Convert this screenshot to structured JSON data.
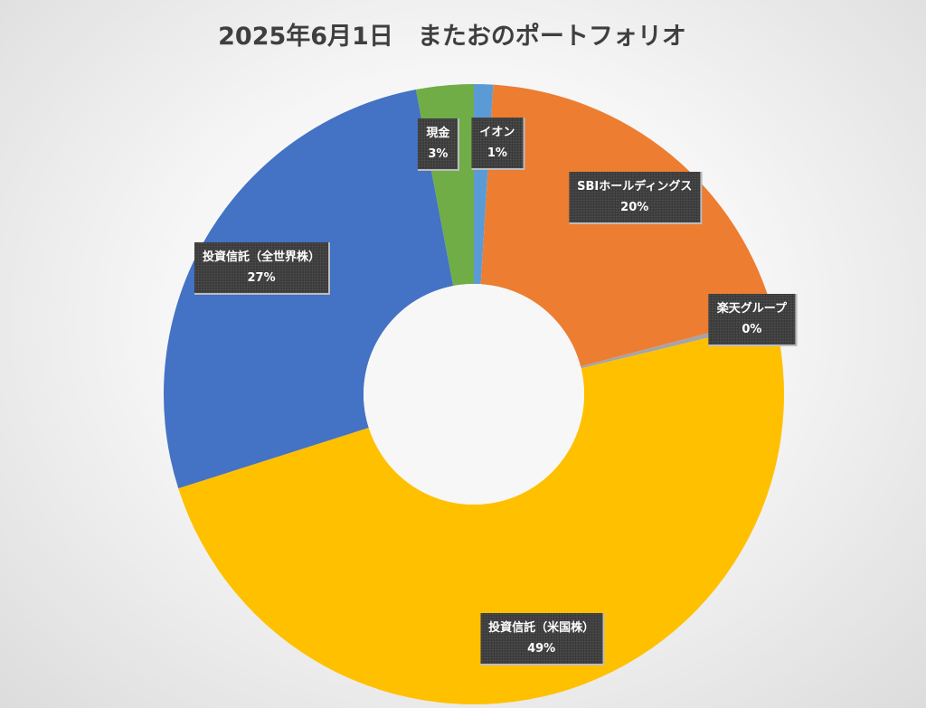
{
  "chart_data": {
    "type": "pie",
    "variant": "doughnut",
    "title": "2025年6月1日　またおのポートフォリオ",
    "slices": [
      {
        "label": "イオン",
        "value": 1,
        "value_label": "1%",
        "color": "#5B9BD5"
      },
      {
        "label": "SBIホールディングス",
        "value": 20,
        "value_label": "20%",
        "color": "#ED7D31"
      },
      {
        "label": "楽天グループ",
        "value": 0.3,
        "value_label": "0%",
        "color": "#A5A5A5"
      },
      {
        "label": "投資信託（米国株）",
        "value": 49,
        "value_label": "49%",
        "color": "#FFC000"
      },
      {
        "label": "投資信託（全世界株）",
        "value": 27,
        "value_label": "27%",
        "color": "#4472C4"
      },
      {
        "label": "現金",
        "value": 3,
        "value_label": "3%",
        "color": "#70AD47"
      }
    ],
    "start_angle_deg": 0,
    "direction": "clockwise",
    "legend": "none"
  }
}
